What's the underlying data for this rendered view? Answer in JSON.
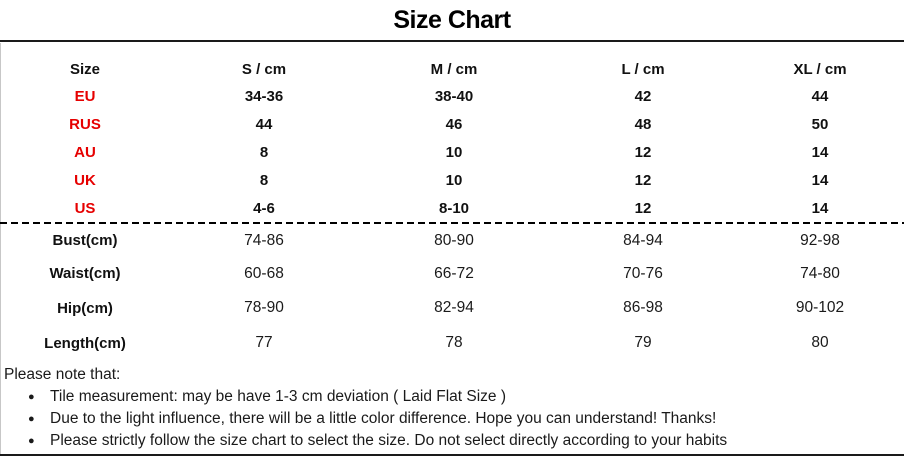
{
  "title": "Size Chart",
  "colors": {
    "accent_red": "#e60000",
    "text_black": "#1a1a1a"
  },
  "table": {
    "headers": [
      "Size",
      "S / cm",
      "M / cm",
      "L / cm",
      "XL / cm"
    ],
    "size_rows": [
      {
        "label": "EU",
        "values": [
          "34-36",
          "38-40",
          "42",
          "44"
        ]
      },
      {
        "label": "RUS",
        "values": [
          "44",
          "46",
          "48",
          "50"
        ]
      },
      {
        "label": "AU",
        "values": [
          "8",
          "10",
          "12",
          "14"
        ]
      },
      {
        "label": "UK",
        "values": [
          "8",
          "10",
          "12",
          "14"
        ]
      },
      {
        "label": "US",
        "values": [
          "4-6",
          "8-10",
          "12",
          "14"
        ]
      }
    ],
    "measurement_rows": [
      {
        "label": "Bust(cm)",
        "values": [
          "74-86",
          "80-90",
          "84-94",
          "92-98"
        ]
      },
      {
        "label": "Waist(cm)",
        "values": [
          "60-68",
          "66-72",
          "70-76",
          "74-80"
        ]
      },
      {
        "label": "Hip(cm)",
        "values": [
          "78-90",
          "82-94",
          "86-98",
          "90-102"
        ]
      },
      {
        "label": "Length(cm)",
        "values": [
          "77",
          "78",
          "79",
          "80"
        ]
      }
    ]
  },
  "notes": {
    "heading": "Please note that:",
    "bullet_glyph": "●",
    "items": [
      "Tile measurement: may be have 1-3 cm deviation ( Laid Flat Size )",
      "Due to the light influence, there will be a little color difference. Hope you can understand! Thanks!",
      "Please strictly follow the size chart to select the size. Do not select directly according to your habits"
    ]
  }
}
